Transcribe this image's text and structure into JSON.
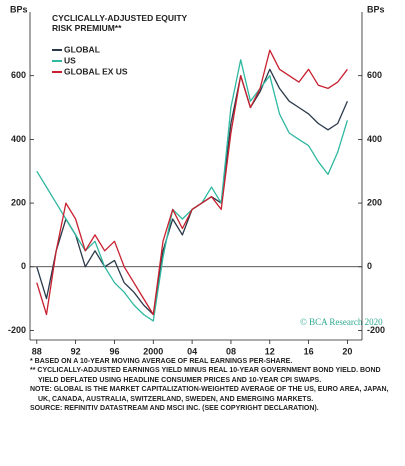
{
  "chart_data": {
    "type": "line",
    "title": "CYCLICALLY-ADJUSTED EQUITY RISK PREMIUM**",
    "y_label": "BPs",
    "y2_label": "BPs",
    "watermark": "© BCA Research 2020",
    "x": [
      1988,
      1989,
      1990,
      1991,
      1992,
      1993,
      1994,
      1995,
      1996,
      1997,
      1998,
      1999,
      2000,
      2001,
      2002,
      2003,
      2004,
      2005,
      2006,
      2007,
      2008,
      2009,
      2010,
      2011,
      2012,
      2013,
      2014,
      2015,
      2016,
      2017,
      2018,
      2019,
      2020
    ],
    "series": [
      {
        "name": "GLOBAL",
        "color": "#2b3a4a",
        "values": [
          0,
          -100,
          50,
          150,
          100,
          0,
          50,
          0,
          20,
          -50,
          -80,
          -120,
          -150,
          50,
          150,
          100,
          180,
          200,
          220,
          200,
          450,
          600,
          500,
          550,
          620,
          560,
          520,
          500,
          480,
          450,
          430,
          450,
          520
        ]
      },
      {
        "name": "US",
        "color": "#2fb8a0",
        "values": [
          300,
          250,
          200,
          150,
          100,
          50,
          80,
          0,
          -50,
          -80,
          -120,
          -150,
          -170,
          30,
          180,
          150,
          180,
          200,
          250,
          200,
          500,
          650,
          520,
          560,
          600,
          480,
          420,
          400,
          380,
          330,
          290,
          360,
          460
        ]
      },
      {
        "name": "GLOBAL EX US",
        "color": "#c8202f",
        "values": [
          -50,
          -150,
          50,
          200,
          150,
          50,
          100,
          50,
          80,
          0,
          -50,
          -100,
          -150,
          80,
          180,
          120,
          180,
          200,
          220,
          180,
          420,
          600,
          500,
          560,
          680,
          620,
          600,
          580,
          620,
          570,
          560,
          580,
          620
        ]
      }
    ],
    "xlim": [
      1987.3,
      2021.5
    ],
    "xticks": [
      {
        "value": 1988,
        "label": "88"
      },
      {
        "value": 1992,
        "label": "92"
      },
      {
        "value": 1996,
        "label": "96"
      },
      2000,
      {
        "value": 2004,
        "label": "04"
      },
      {
        "value": 2008,
        "label": "08"
      },
      {
        "value": 2012,
        "label": "12"
      },
      {
        "value": 2016,
        "label": "16"
      },
      {
        "value": 2020,
        "label": "20"
      }
    ],
    "ylim": [
      -230,
      800
    ],
    "yticks": [
      -200,
      0,
      200,
      400,
      600
    ],
    "y2lim": [
      -230,
      800
    ],
    "y2ticks": [
      -200,
      0,
      200,
      400,
      600
    ],
    "zero_line": true,
    "notes": [
      "* BASED ON A 10-YEAR MOVING AVERAGE OF REAL EARNINGS PER-SHARE.",
      "** CYCLICALLY-ADJUSTED EARNINGS YIELD MINUS REAL 10-YEAR GOVERNMENT BOND YIELD. BOND YIELD DEFLATED USING HEADLINE CONSUMER PRICES AND 10-YEAR CPI SWAPS.",
      "NOTE: GLOBAL IS THE MARKET CAPITALIZATION-WEIGHTED AVERAGE OF THE US, EURO AREA, JAPAN, UK, CANADA, AUSTRALIA, SWITZERLAND, SWEDEN, AND EMERGING MARKETS.",
      "SOURCE: REFINITIV DATASTREAM AND MSCI INC. (SEE COPYRIGHT DECLARATION)."
    ]
  }
}
